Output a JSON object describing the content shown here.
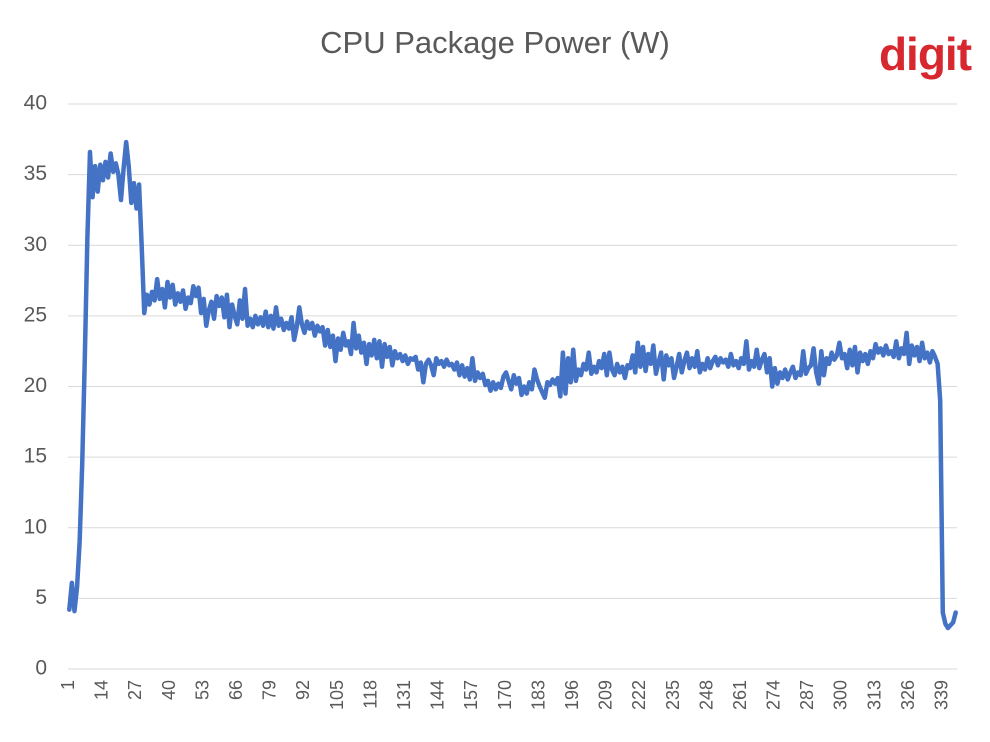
{
  "chart_data": {
    "type": "line",
    "title": "CPU Package Power (W)",
    "watermark": "digit",
    "categories": [
      "1",
      null,
      null,
      null,
      null,
      null,
      null,
      null,
      null,
      null,
      null,
      null,
      null,
      "14",
      null,
      null,
      null,
      null,
      null,
      null,
      null,
      null,
      null,
      null,
      null,
      null,
      "27",
      null,
      null,
      null,
      null,
      null,
      null,
      null,
      null,
      null,
      null,
      null,
      null,
      "40",
      null,
      null,
      null,
      null,
      null,
      null,
      null,
      null,
      null,
      null,
      null,
      null,
      "53",
      null,
      null,
      null,
      null,
      null,
      null,
      null,
      null,
      null,
      null,
      null,
      null,
      "66",
      null,
      null,
      null,
      null,
      null,
      null,
      null,
      null,
      null,
      null,
      null,
      null,
      "79",
      null,
      null,
      null,
      null,
      null,
      null,
      null,
      null,
      null,
      null,
      null,
      null,
      "92",
      null,
      null,
      null,
      null,
      null,
      null,
      null,
      null,
      null,
      null,
      null,
      null,
      "105",
      null,
      null,
      null,
      null,
      null,
      null,
      null,
      null,
      null,
      null,
      null,
      null,
      "118",
      null,
      null,
      null,
      null,
      null,
      null,
      null,
      null,
      null,
      null,
      null,
      null,
      "131",
      null,
      null,
      null,
      null,
      null,
      null,
      null,
      null,
      null,
      null,
      null,
      null,
      "144",
      null,
      null,
      null,
      null,
      null,
      null,
      null,
      null,
      null,
      null,
      null,
      null,
      "157",
      null,
      null,
      null,
      null,
      null,
      null,
      null,
      null,
      null,
      null,
      null,
      null,
      "170",
      null,
      null,
      null,
      null,
      null,
      null,
      null,
      null,
      null,
      null,
      null,
      null,
      "183",
      null,
      null,
      null,
      null,
      null,
      null,
      null,
      null,
      null,
      null,
      null,
      null,
      "196",
      null,
      null,
      null,
      null,
      null,
      null,
      null,
      null,
      null,
      null,
      null,
      null,
      "209",
      null,
      null,
      null,
      null,
      null,
      null,
      null,
      null,
      null,
      null,
      null,
      null,
      "222",
      null,
      null,
      null,
      null,
      null,
      null,
      null,
      null,
      null,
      null,
      null,
      null,
      "235",
      null,
      null,
      null,
      null,
      null,
      null,
      null,
      null,
      null,
      null,
      null,
      null,
      "248",
      null,
      null,
      null,
      null,
      null,
      null,
      null,
      null,
      null,
      null,
      null,
      null,
      "261",
      null,
      null,
      null,
      null,
      null,
      null,
      null,
      null,
      null,
      null,
      null,
      null,
      "274",
      null,
      null,
      null,
      null,
      null,
      null,
      null,
      null,
      null,
      null,
      null,
      null,
      "287",
      null,
      null,
      null,
      null,
      null,
      null,
      null,
      null,
      null,
      null,
      null,
      null,
      "300",
      null,
      null,
      null,
      null,
      null,
      null,
      null,
      null,
      null,
      null,
      null,
      null,
      "313",
      null,
      null,
      null,
      null,
      null,
      null,
      null,
      null,
      null,
      null,
      null,
      null,
      "326",
      null,
      null,
      null,
      null,
      null,
      null,
      null,
      null,
      null,
      null,
      null,
      null,
      "339",
      null,
      null,
      null,
      null,
      null
    ],
    "series": [
      {
        "name": "CPU Package Power (W)",
        "color": "#4472c4",
        "values": [
          4.2,
          6.1,
          4.1,
          5.8,
          9.0,
          14.5,
          22.0,
          30.5,
          36.6,
          33.4,
          35.6,
          33.8,
          35.7,
          34.6,
          35.9,
          34.8,
          36.5,
          35.2,
          35.8,
          35.0,
          33.2,
          35.4,
          37.3,
          35.6,
          33.0,
          34.4,
          32.6,
          34.3,
          30.0,
          25.2,
          26.5,
          25.8,
          26.7,
          26.1,
          27.6,
          26.2,
          26.9,
          25.6,
          27.4,
          26.3,
          27.2,
          25.8,
          26.6,
          26.0,
          26.8,
          25.5,
          26.3,
          25.9,
          27.1,
          26.4,
          27.0,
          25.2,
          26.2,
          24.3,
          25.4,
          26.0,
          24.8,
          26.4,
          25.7,
          26.3,
          24.9,
          26.5,
          24.2,
          25.8,
          25.0,
          24.4,
          26.1,
          24.8,
          26.9,
          24.3,
          24.8,
          24.2,
          25.0,
          24.4,
          24.9,
          24.3,
          25.3,
          24.2,
          25.0,
          24.1,
          25.6,
          24.3,
          24.8,
          24.0,
          24.5,
          24.1,
          24.9,
          23.3,
          24.2,
          25.6,
          24.4,
          23.8,
          24.6,
          24.1,
          24.5,
          23.6,
          24.3,
          23.9,
          24.2,
          22.9,
          24.0,
          22.8,
          23.6,
          21.8,
          23.4,
          22.6,
          23.8,
          22.9,
          23.2,
          22.3,
          24.5,
          22.7,
          23.6,
          22.4,
          23.1,
          21.6,
          23.0,
          22.2,
          23.3,
          22.0,
          23.2,
          21.4,
          23.0,
          22.1,
          22.8,
          21.5,
          22.5,
          22.0,
          22.3,
          21.8,
          22.2,
          21.6,
          22.0,
          21.9,
          22.1,
          21.2,
          21.7,
          20.3,
          21.6,
          21.9,
          21.5,
          20.8,
          22.0,
          21.6,
          21.8,
          21.4,
          21.9,
          21.5,
          21.6,
          21.2,
          21.7,
          20.8,
          21.5,
          20.7,
          21.3,
          20.5,
          22.0,
          20.4,
          21.0,
          20.6,
          20.9,
          20.1,
          20.4,
          19.7,
          20.3,
          19.8,
          20.2,
          19.9,
          20.7,
          21.0,
          20.4,
          19.8,
          20.8,
          20.2,
          20.6,
          19.4,
          20.0,
          19.5,
          20.3,
          19.8,
          21.2,
          20.5,
          20.0,
          19.6,
          19.2,
          20.3,
          20.1,
          20.5,
          20.2,
          20.6,
          19.3,
          22.4,
          19.5,
          22.0,
          20.3,
          22.6,
          20.4,
          21.2,
          20.8,
          21.6,
          21.2,
          22.4,
          20.9,
          21.4,
          21.0,
          21.8,
          21.3,
          22.3,
          20.8,
          22.4,
          21.2,
          20.8,
          21.6,
          21.0,
          21.4,
          20.6,
          21.5,
          21.3,
          22.2,
          21.0,
          23.1,
          21.4,
          22.8,
          21.1,
          22.3,
          21.6,
          22.9,
          20.9,
          21.7,
          22.4,
          20.5,
          22.2,
          21.5,
          22.0,
          20.6,
          21.4,
          22.3,
          21.0,
          21.8,
          22.4,
          21.3,
          22.0,
          21.4,
          22.5,
          21.0,
          21.6,
          21.2,
          22.0,
          21.3,
          21.8,
          22.1,
          21.5,
          22.0,
          21.7,
          21.9,
          21.4,
          22.3,
          21.5,
          21.8,
          21.3,
          22.0,
          21.6,
          23.2,
          21.2,
          21.8,
          21.4,
          22.6,
          21.3,
          21.9,
          22.3,
          21.0,
          22.0,
          20.0,
          21.3,
          20.2,
          21.0,
          20.6,
          21.2,
          20.5,
          21.0,
          21.4,
          20.6,
          21.0,
          20.8,
          22.5,
          20.9,
          21.3,
          21.5,
          22.7,
          21.0,
          20.2,
          22.5,
          20.8,
          22.0,
          21.6,
          22.4,
          21.9,
          22.2,
          23.1,
          22.0,
          22.3,
          21.3,
          22.6,
          21.5,
          22.8,
          21.0,
          22.4,
          21.8,
          22.3,
          21.6,
          22.5,
          22.0,
          23.0,
          22.4,
          22.7,
          22.2,
          22.9,
          22.3,
          22.5,
          22.1,
          23.2,
          22.0,
          22.7,
          22.3,
          23.8,
          21.6,
          22.9,
          22.2,
          22.8,
          21.8,
          23.1,
          22.0,
          22.4,
          21.7,
          22.5,
          22.1,
          21.6,
          19.0,
          4.0,
          3.2,
          2.9,
          3.1,
          3.3,
          4.0
        ]
      }
    ],
    "ylim": [
      0,
      40
    ],
    "yticks": [
      0,
      5,
      10,
      15,
      20,
      25,
      30,
      35,
      40
    ],
    "grid": true
  }
}
